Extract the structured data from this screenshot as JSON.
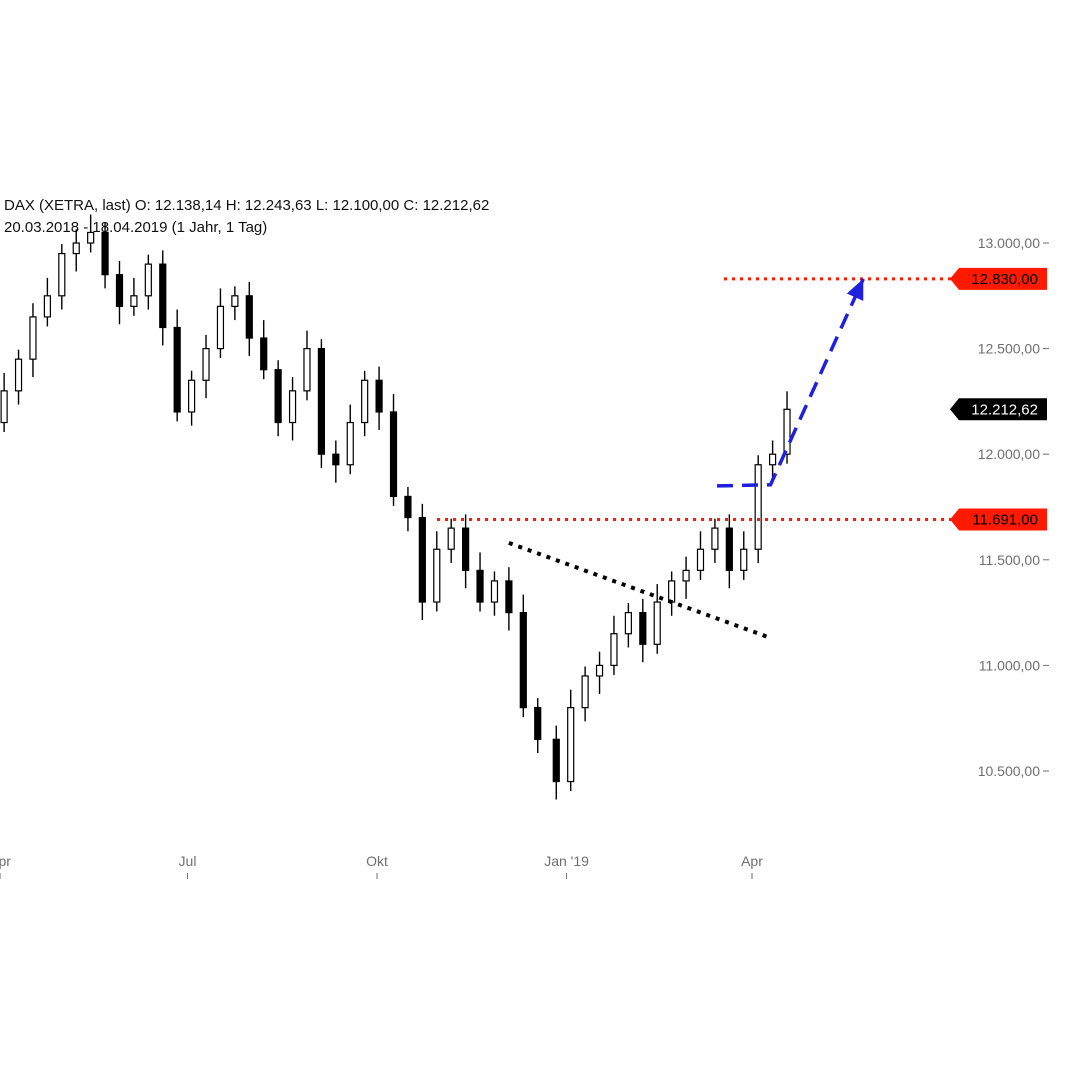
{
  "header": {
    "line1": "DAX (XETRA, last)  O: 12.138,14  H: 12.243,63  L: 12.100,00  C: 12.212,62",
    "line2": "20.03.2018 - 18.04.2019   (1 Jahr, 1 Tag)"
  },
  "chart_data": {
    "type": "line",
    "title": "DAX (XETRA, last)",
    "subtitle": "20.03.2018 - 18.04.2019   (1 Jahr, 1 Tag)",
    "ohlc_last": {
      "open": 12138.14,
      "high": 12243.63,
      "low": 12100.0,
      "close": 12212.62
    },
    "x_range": [
      "2018-03-20",
      "2019-04-18"
    ],
    "ylim": [
      10250,
      13100
    ],
    "yticks": [
      {
        "value": 13000,
        "label": "13.000,00"
      },
      {
        "value": 12500,
        "label": "12.500,00"
      },
      {
        "value": 12000,
        "label": "12.000,00"
      },
      {
        "value": 11500,
        "label": "11.500,00"
      },
      {
        "value": 11000,
        "label": "11.000,00"
      },
      {
        "value": 10500,
        "label": "10.500,00"
      }
    ],
    "xticks": [
      {
        "date": "2018-04-01",
        "label": "Apr"
      },
      {
        "date": "2018-07-01",
        "label": "Jul"
      },
      {
        "date": "2018-10-01",
        "label": "Okt"
      },
      {
        "date": "2019-01-01",
        "label": "Jan '19"
      },
      {
        "date": "2019-04-01",
        "label": "Apr"
      }
    ],
    "series": [
      {
        "x": [
          "2018-03-20",
          "2018-03-27",
          "2018-04-03",
          "2018-04-10",
          "2018-04-17",
          "2018-04-24",
          "2018-05-01",
          "2018-05-08",
          "2018-05-15",
          "2018-05-22",
          "2018-05-29",
          "2018-06-05",
          "2018-06-12",
          "2018-06-19",
          "2018-06-26",
          "2018-07-03",
          "2018-07-10",
          "2018-07-17",
          "2018-07-24",
          "2018-07-31",
          "2018-08-07",
          "2018-08-14",
          "2018-08-21",
          "2018-08-28",
          "2018-09-04",
          "2018-09-11",
          "2018-09-18",
          "2018-09-25",
          "2018-10-02",
          "2018-10-09",
          "2018-10-16",
          "2018-10-23",
          "2018-10-30",
          "2018-11-06",
          "2018-11-13",
          "2018-11-20",
          "2018-11-27",
          "2018-12-04",
          "2018-12-11",
          "2018-12-18",
          "2018-12-27",
          "2019-01-03",
          "2019-01-10",
          "2019-01-17",
          "2019-01-24",
          "2019-01-31",
          "2019-02-07",
          "2019-02-14",
          "2019-02-21",
          "2019-02-28",
          "2019-03-07",
          "2019-03-14",
          "2019-03-21",
          "2019-03-28",
          "2019-04-04",
          "2019-04-11",
          "2019-04-18"
        ],
        "values": [
          12000,
          12150,
          12300,
          12450,
          12650,
          12750,
          12950,
          13000,
          13050,
          12850,
          12700,
          12750,
          12900,
          12600,
          12200,
          12350,
          12500,
          12700,
          12750,
          12550,
          12400,
          12150,
          12300,
          12500,
          12000,
          11950,
          12150,
          12350,
          12200,
          11800,
          11700,
          11300,
          11550,
          11650,
          11450,
          11300,
          11400,
          11250,
          10800,
          10650,
          10450,
          10800,
          10950,
          11000,
          11150,
          11250,
          11100,
          11300,
          11400,
          11450,
          11550,
          11650,
          11450,
          11550,
          11950,
          12000,
          12212.62
        ]
      }
    ],
    "levels": [
      {
        "value": 12830,
        "label": "12.830,00",
        "color": "#ff1a00"
      },
      {
        "value": 11691,
        "label": "11.691,00",
        "color": "#ff1a00"
      }
    ],
    "last_value": {
      "value": 12212.62,
      "label": "12.212,62",
      "color": "#000000"
    },
    "trendline_dotted": [
      {
        "date": "2018-12-04",
        "value": 11580
      },
      {
        "date": "2019-04-10",
        "value": 11130
      }
    ],
    "projection_dashed": [
      {
        "date": "2019-03-15",
        "value": 11850
      },
      {
        "date": "2019-04-10",
        "value": 11855
      },
      {
        "date": "2019-05-25",
        "value": 12830
      }
    ],
    "colors": {
      "candles": "#000000",
      "levels": "#ff1a00",
      "projection": "#1f1fe0",
      "trendline": "#000000",
      "axis_text": "#6f6f6f"
    },
    "grid": false,
    "legend": "none"
  }
}
